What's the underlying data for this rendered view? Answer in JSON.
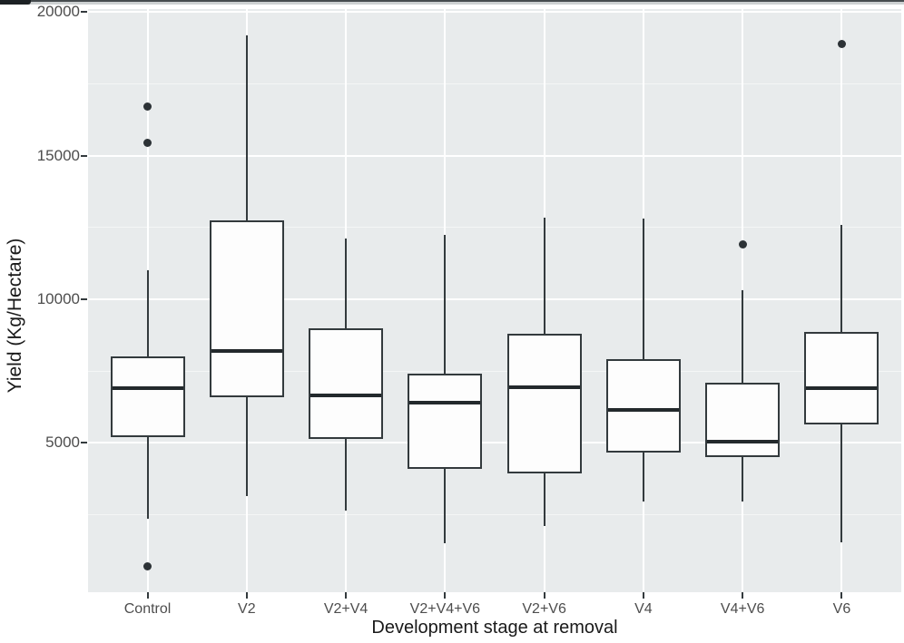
{
  "chart_data": {
    "type": "boxplot",
    "title": "",
    "xlabel": "Development stage at removal",
    "ylabel": "Yield (Kg/Hectare)",
    "categories": [
      "Control",
      "V2",
      "V2+V4",
      "V2+V4+V6",
      "V2+V6",
      "V4",
      "V4+V6",
      "V6"
    ],
    "y_ticks": [
      5000,
      10000,
      15000,
      20000
    ],
    "y_tick_labels": [
      "5000",
      "10000",
      "15000",
      "20000"
    ],
    "y_minor_gridlines": [
      2500,
      7500,
      12500,
      17500
    ],
    "ylim": [
      -200,
      20100
    ],
    "grid": "on",
    "legend": "none",
    "series": [
      {
        "category": "Control",
        "whisker_low": 2350,
        "q1": 5200,
        "median": 6900,
        "q3": 8000,
        "whisker_high": 11000,
        "outliers": [
          700,
          15450,
          16700
        ]
      },
      {
        "category": "V2",
        "whisker_low": 3150,
        "q1": 6600,
        "median": 8200,
        "q3": 12750,
        "whisker_high": 19200,
        "outliers": []
      },
      {
        "category": "V2+V4",
        "whisker_low": 2650,
        "q1": 5150,
        "median": 6650,
        "q3": 9000,
        "whisker_high": 12100,
        "outliers": []
      },
      {
        "category": "V2+V4+V6",
        "whisker_low": 1500,
        "q1": 4100,
        "median": 6400,
        "q3": 7400,
        "whisker_high": 12250,
        "outliers": []
      },
      {
        "category": "V2+V6",
        "whisker_low": 2100,
        "q1": 3950,
        "median": 6950,
        "q3": 8800,
        "whisker_high": 12850,
        "outliers": []
      },
      {
        "category": "V4",
        "whisker_low": 2950,
        "q1": 4650,
        "median": 6150,
        "q3": 7900,
        "whisker_high": 12800,
        "outliers": []
      },
      {
        "category": "V4+V6",
        "whisker_low": 2950,
        "q1": 4500,
        "median": 5050,
        "q3": 7100,
        "whisker_high": 10300,
        "outliers": [
          11900
        ]
      },
      {
        "category": "V6",
        "whisker_low": 1550,
        "q1": 5650,
        "median": 6900,
        "q3": 8850,
        "whisker_high": 12600,
        "outliers": [
          18900
        ]
      }
    ],
    "colors": {
      "panel_bg": "#e8ebec",
      "grid_major": "#ffffff",
      "grid_minor": "#f5f7f7",
      "box_fill": "#fdfdfd",
      "box_border": "#333a3d",
      "median": "#23292c",
      "whisker": "#333a3d",
      "outlier": "#2c3236",
      "tick_text": "#4d4d4d",
      "axis_title_text": "#1a1a1a"
    }
  }
}
